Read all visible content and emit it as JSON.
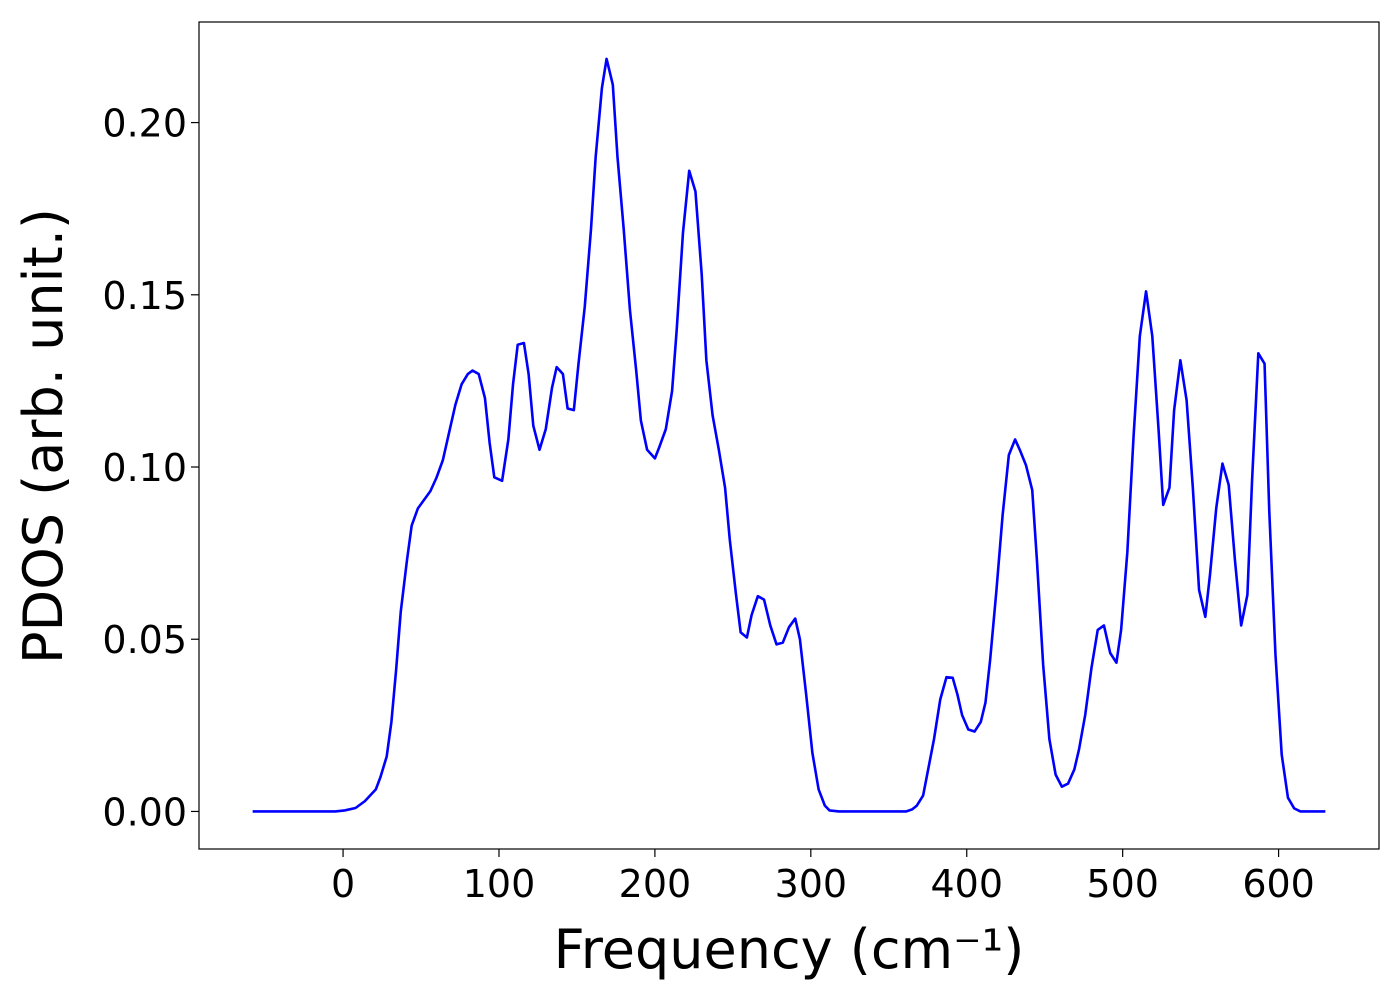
{
  "chart_data": {
    "type": "line",
    "xlabel": "Frequency (cm⁻¹)",
    "ylabel": "PDOS (arb. unit.)",
    "xlim": [
      -92.4,
      664.4
    ],
    "ylim": [
      -0.0109,
      0.2292
    ],
    "xticks": [
      0,
      100,
      200,
      300,
      400,
      500,
      600
    ],
    "yticks": [
      {
        "value": 0,
        "label": "0.00"
      },
      {
        "value": 0.05,
        "label": "0.05"
      },
      {
        "value": 0.1,
        "label": "0.10"
      },
      {
        "value": 0.15,
        "label": "0.15"
      },
      {
        "value": 0.2,
        "label": "0.20"
      }
    ],
    "series": [
      {
        "color": "#0000ff",
        "x": [
          -58,
          -5,
          1,
          8,
          14,
          21,
          24,
          28,
          31,
          34,
          37,
          41,
          44,
          48,
          56,
          60,
          64,
          68,
          72,
          76,
          80,
          83,
          87,
          91,
          94,
          97,
          102,
          106,
          109,
          112,
          116,
          119,
          122,
          126,
          130,
          134,
          137,
          141,
          144,
          148,
          151,
          155,
          159,
          162,
          166,
          169,
          173,
          176,
          180,
          184,
          188,
          191,
          195,
          200,
          203,
          207,
          211,
          214,
          218,
          222,
          226,
          230,
          233,
          237,
          241,
          245,
          248,
          252,
          255,
          259,
          262,
          266,
          270,
          274,
          278,
          282,
          286,
          290,
          293,
          297,
          301,
          305,
          309,
          312,
          318,
          361,
          365,
          368,
          372,
          375,
          379,
          383,
          387,
          391,
          394,
          397,
          401,
          405,
          409,
          412,
          415,
          419,
          423,
          427,
          431,
          434,
          438,
          442,
          445,
          449,
          453,
          457,
          461,
          465,
          469,
          472,
          476,
          480,
          484,
          488,
          492,
          496,
          499,
          503,
          507,
          511,
          515,
          519,
          523,
          526,
          530,
          533,
          537,
          541,
          545,
          549,
          553,
          556,
          560,
          564,
          568,
          572,
          576,
          580,
          583,
          587,
          591,
          594,
          598,
          602,
          606,
          610,
          614,
          630
        ],
        "values": [
          0,
          0,
          0.0003,
          0.001,
          0.003,
          0.0064,
          0.01,
          0.016,
          0.026,
          0.041,
          0.058,
          0.073,
          0.083,
          0.088,
          0.093,
          0.097,
          0.102,
          0.11,
          0.118,
          0.124,
          0.127,
          0.128,
          0.127,
          0.12,
          0.107,
          0.097,
          0.096,
          0.108,
          0.124,
          0.1355,
          0.136,
          0.127,
          0.112,
          0.105,
          0.111,
          0.123,
          0.129,
          0.127,
          0.117,
          0.1165,
          0.13,
          0.1465,
          0.169,
          0.19,
          0.21,
          0.2185,
          0.211,
          0.19,
          0.169,
          0.1455,
          0.128,
          0.1135,
          0.105,
          0.1025,
          0.106,
          0.111,
          0.122,
          0.14,
          0.168,
          0.186,
          0.18,
          0.156,
          0.131,
          0.115,
          0.105,
          0.094,
          0.079,
          0.063,
          0.052,
          0.0505,
          0.057,
          0.0625,
          0.0615,
          0.054,
          0.0485,
          0.049,
          0.0535,
          0.056,
          0.05,
          0.034,
          0.017,
          0.0064,
          0.0017,
          0.0003,
          0,
          0,
          0.0006,
          0.0017,
          0.0046,
          0.0116,
          0.021,
          0.0325,
          0.039,
          0.0388,
          0.034,
          0.028,
          0.0238,
          0.0232,
          0.026,
          0.0316,
          0.044,
          0.064,
          0.086,
          0.1035,
          0.108,
          0.105,
          0.1005,
          0.0933,
          0.073,
          0.0426,
          0.021,
          0.0107,
          0.0072,
          0.0081,
          0.0122,
          0.018,
          0.0281,
          0.0417,
          0.0527,
          0.054,
          0.046,
          0.0432,
          0.0527,
          0.0753,
          0.109,
          0.138,
          0.151,
          0.138,
          0.111,
          0.089,
          0.094,
          0.1165,
          0.131,
          0.1194,
          0.094,
          0.0643,
          0.0565,
          0.0687,
          0.088,
          0.101,
          0.0948,
          0.073,
          0.054,
          0.0629,
          0.0962,
          0.133,
          0.13,
          0.0875,
          0.0455,
          0.0165,
          0.004,
          0.0009,
          0,
          0
        ]
      }
    ]
  }
}
